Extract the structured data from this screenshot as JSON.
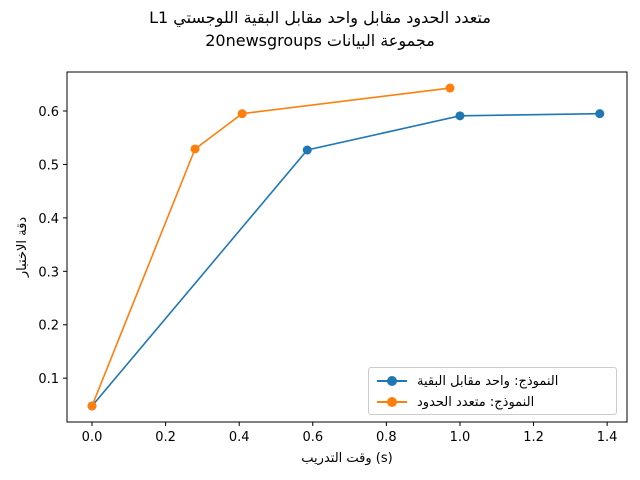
{
  "title": {
    "line1": "متعدد الحدود مقابل واحد مقابل البقية اللوجستي L1",
    "line2": "مجموعة البيانات 20newsgroups"
  },
  "colors": {
    "series1": "#1f77b4",
    "series2": "#ff7f0e"
  },
  "chart_data": {
    "type": "line",
    "title": "متعدد الحدود مقابل واحد مقابل البقية اللوجستي L1\nمجموعة البيانات 20newsgroups",
    "xlabel": "وقت التدريب (s)",
    "ylabel": "دقة الاختبار",
    "xlim": [
      -0.068,
      1.454
    ],
    "ylim": [
      0.018,
      0.673
    ],
    "xticks": [
      0.0,
      0.2,
      0.4,
      0.6,
      0.8,
      1.0,
      1.2,
      1.4
    ],
    "xtick_labels": [
      "0.0",
      "0.2",
      "0.4",
      "0.6",
      "0.8",
      "1.0",
      "1.2",
      "1.4"
    ],
    "yticks": [
      0.1,
      0.2,
      0.3,
      0.4,
      0.5,
      0.6
    ],
    "ytick_labels": [
      "0.1",
      "0.2",
      "0.3",
      "0.4",
      "0.5",
      "0.6"
    ],
    "grid": false,
    "legend_position": "lower right",
    "series": [
      {
        "name": "النموذج: واحد مقابل البقية",
        "color": "#1f77b4",
        "marker": "o",
        "x": [
          0.0,
          0.585,
          1.0,
          1.38
        ],
        "y": [
          0.048,
          0.527,
          0.591,
          0.595
        ]
      },
      {
        "name": "النموذج: متعدد الحدود",
        "color": "#ff7f0e",
        "marker": "o",
        "x": [
          0.0,
          0.28,
          0.408,
          0.973
        ],
        "y": [
          0.048,
          0.529,
          0.595,
          0.643
        ]
      }
    ]
  }
}
